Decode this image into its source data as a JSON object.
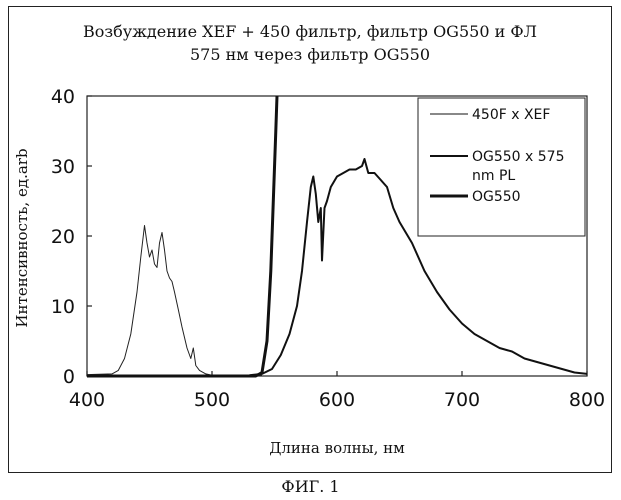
{
  "chart_data": {
    "type": "line",
    "title_line1": "Возбуждение XEF + 450 фильтр, фильтр OG550 и ФЛ",
    "title_line2": "575 нм через фильтр OG550",
    "xlabel": "Длина волны, нм",
    "ylabel": "Интенсивность, ед.arb",
    "xlim": [
      400,
      800
    ],
    "ylim": [
      0,
      40
    ],
    "xticks": [
      "400",
      "500",
      "600",
      "700",
      "800"
    ],
    "yticks": [
      "0",
      "10",
      "20",
      "30",
      "40"
    ],
    "grid": false,
    "legend_position": "top-right",
    "legend": [
      "450F x XEF",
      "OG550 x 575",
      "nm PL",
      "OG550"
    ],
    "series": [
      {
        "name": "450F x XEF",
        "color": "#222222",
        "width": 1,
        "points": [
          [
            400,
            0.2
          ],
          [
            420,
            0.3
          ],
          [
            425,
            0.8
          ],
          [
            430,
            2.5
          ],
          [
            435,
            6
          ],
          [
            440,
            12
          ],
          [
            443,
            17
          ],
          [
            446,
            21.5
          ],
          [
            448,
            19
          ],
          [
            450,
            17
          ],
          [
            452,
            18
          ],
          [
            454,
            16
          ],
          [
            456,
            15.5
          ],
          [
            458,
            19
          ],
          [
            460,
            20.5
          ],
          [
            462,
            18
          ],
          [
            464,
            15
          ],
          [
            466,
            14
          ],
          [
            468,
            13.5
          ],
          [
            470,
            12
          ],
          [
            473,
            9.5
          ],
          [
            476,
            7
          ],
          [
            480,
            4
          ],
          [
            483,
            2.5
          ],
          [
            485,
            4
          ],
          [
            487,
            1.5
          ],
          [
            490,
            0.8
          ],
          [
            495,
            0.3
          ],
          [
            500,
            0.1
          ],
          [
            520,
            0.1
          ],
          [
            540,
            0.1
          ]
        ]
      },
      {
        "name": "OG550 x 575 nm PL",
        "color": "#111111",
        "width": 2,
        "points": [
          [
            530,
            0.1
          ],
          [
            540,
            0.3
          ],
          [
            548,
            1
          ],
          [
            555,
            3
          ],
          [
            562,
            6
          ],
          [
            568,
            10
          ],
          [
            572,
            15
          ],
          [
            576,
            22
          ],
          [
            579,
            27
          ],
          [
            581,
            28.5
          ],
          [
            583,
            26
          ],
          [
            585,
            22
          ],
          [
            587,
            24
          ],
          [
            588,
            16.5
          ],
          [
            590,
            24
          ],
          [
            592,
            25
          ],
          [
            595,
            27
          ],
          [
            600,
            28.5
          ],
          [
            605,
            29
          ],
          [
            610,
            29.5
          ],
          [
            615,
            29.5
          ],
          [
            620,
            30
          ],
          [
            622,
            31
          ],
          [
            625,
            29
          ],
          [
            630,
            29
          ],
          [
            635,
            28
          ],
          [
            640,
            27
          ],
          [
            645,
            24
          ],
          [
            650,
            22
          ],
          [
            660,
            19
          ],
          [
            670,
            15
          ],
          [
            680,
            12
          ],
          [
            690,
            9.5
          ],
          [
            700,
            7.5
          ],
          [
            710,
            6
          ],
          [
            720,
            5
          ],
          [
            730,
            4
          ],
          [
            740,
            3.5
          ],
          [
            750,
            2.5
          ],
          [
            760,
            2
          ],
          [
            770,
            1.5
          ],
          [
            780,
            1
          ],
          [
            790,
            0.5
          ],
          [
            800,
            0.3
          ]
        ]
      },
      {
        "name": "OG550",
        "color": "#111111",
        "width": 3,
        "points": [
          [
            400,
            0
          ],
          [
            535,
            0
          ],
          [
            540,
            0.5
          ],
          [
            544,
            5
          ],
          [
            547,
            15
          ],
          [
            549,
            25
          ],
          [
            551,
            35
          ],
          [
            552,
            40
          ]
        ]
      }
    ]
  },
  "caption": "ФИГ. 1"
}
